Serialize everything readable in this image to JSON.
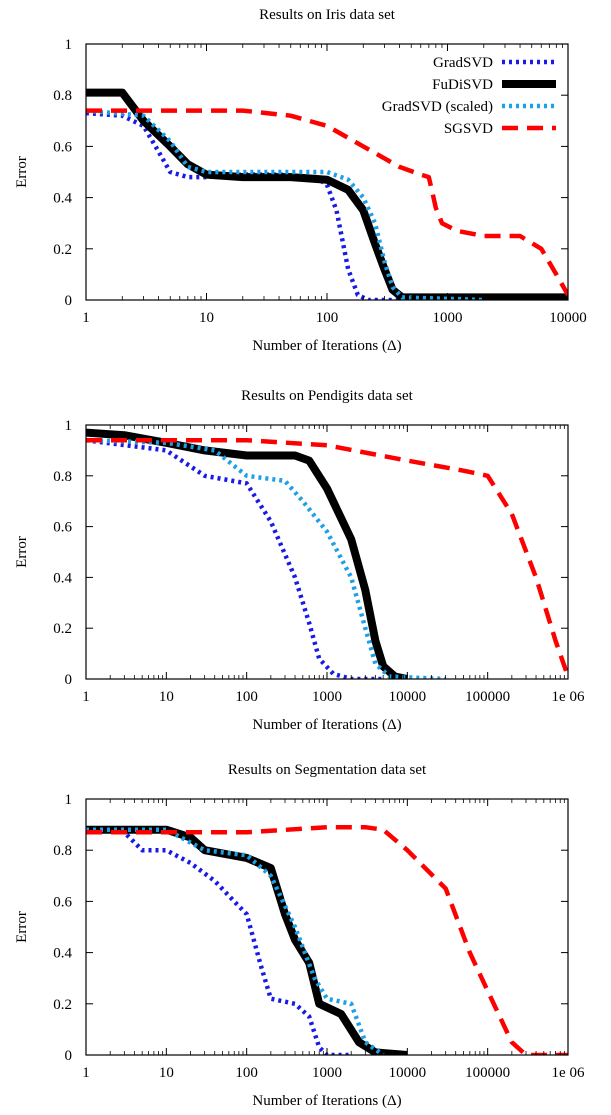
{
  "chart_data": [
    {
      "type": "line",
      "title": "Results on Iris data set",
      "xlabel": "Number of Iterations (Δ)",
      "ylabel": "Error",
      "xscale": "log",
      "xlim": [
        1,
        10000
      ],
      "ylim": [
        0,
        1
      ],
      "xticks": [
        1,
        10,
        100,
        1000,
        10000
      ],
      "xtick_labels": [
        "1",
        "10",
        "100",
        "1000",
        "10000"
      ],
      "yticks": [
        0,
        0.2,
        0.4,
        0.6,
        0.8,
        1
      ],
      "ytick_labels": [
        "0",
        "0.2",
        "0.4",
        "0.6",
        "0.8",
        "1"
      ],
      "grid": false,
      "legend_position": "top-right",
      "series": [
        {
          "name": "GradSVD",
          "color": "#1a1ae6",
          "style": "dotted",
          "points": [
            [
              1,
              0.73
            ],
            [
              2,
              0.72
            ],
            [
              3,
              0.68
            ],
            [
              4,
              0.58
            ],
            [
              5,
              0.5
            ],
            [
              7,
              0.48
            ],
            [
              10,
              0.48
            ],
            [
              20,
              0.49
            ],
            [
              40,
              0.49
            ],
            [
              80,
              0.48
            ],
            [
              100,
              0.45
            ],
            [
              120,
              0.35
            ],
            [
              150,
              0.12
            ],
            [
              180,
              0.02
            ],
            [
              220,
              0
            ],
            [
              2000,
              0
            ]
          ]
        },
        {
          "name": "FuDiSVD",
          "color": "#000000",
          "style": "solid",
          "points": [
            [
              1,
              0.81
            ],
            [
              2,
              0.81
            ],
            [
              3,
              0.7
            ],
            [
              5,
              0.6
            ],
            [
              7,
              0.53
            ],
            [
              10,
              0.49
            ],
            [
              20,
              0.48
            ],
            [
              50,
              0.48
            ],
            [
              100,
              0.47
            ],
            [
              150,
              0.43
            ],
            [
              200,
              0.35
            ],
            [
              250,
              0.22
            ],
            [
              300,
              0.12
            ],
            [
              350,
              0.04
            ],
            [
              420,
              0.01
            ],
            [
              600,
              0.01
            ],
            [
              2000,
              0.01
            ],
            [
              10000,
              0.01
            ]
          ]
        },
        {
          "name": "GradSVD (scaled)",
          "color": "#1ea0e6",
          "style": "dotted",
          "points": [
            [
              1,
              0.74
            ],
            [
              3,
              0.72
            ],
            [
              5,
              0.62
            ],
            [
              7,
              0.52
            ],
            [
              10,
              0.5
            ],
            [
              20,
              0.5
            ],
            [
              50,
              0.5
            ],
            [
              100,
              0.5
            ],
            [
              150,
              0.47
            ],
            [
              200,
              0.4
            ],
            [
              250,
              0.3
            ],
            [
              300,
              0.15
            ],
            [
              350,
              0.05
            ],
            [
              420,
              0.01
            ],
            [
              2000,
              0
            ]
          ]
        },
        {
          "name": "SGSVD",
          "color": "#ff0000",
          "style": "dashed",
          "points": [
            [
              1,
              0.74
            ],
            [
              5,
              0.74
            ],
            [
              20,
              0.74
            ],
            [
              50,
              0.72
            ],
            [
              100,
              0.68
            ],
            [
              200,
              0.6
            ],
            [
              400,
              0.52
            ],
            [
              600,
              0.49
            ],
            [
              700,
              0.48
            ],
            [
              750,
              0.42
            ],
            [
              800,
              0.36
            ],
            [
              900,
              0.3
            ],
            [
              1200,
              0.27
            ],
            [
              2000,
              0.25
            ],
            [
              4000,
              0.25
            ],
            [
              6000,
              0.2
            ],
            [
              8000,
              0.1
            ],
            [
              10000,
              0.02
            ]
          ]
        }
      ]
    },
    {
      "type": "line",
      "title": "Results on Pendigits data set",
      "xlabel": "Number of Iterations (Δ)",
      "ylabel": "Error",
      "xscale": "log",
      "xlim": [
        1,
        1000000
      ],
      "ylim": [
        0,
        1
      ],
      "xticks": [
        1,
        10,
        100,
        1000,
        10000,
        100000,
        1000000
      ],
      "xtick_labels": [
        "1",
        "10",
        "100",
        "1000",
        "10000",
        "100000",
        "1e 06"
      ],
      "yticks": [
        0,
        0.2,
        0.4,
        0.6,
        0.8,
        1
      ],
      "ytick_labels": [
        "0",
        "0.2",
        "0.4",
        "0.6",
        "0.8",
        "1"
      ],
      "grid": false,
      "series": [
        {
          "name": "GradSVD",
          "color": "#1a1ae6",
          "style": "dotted",
          "points": [
            [
              1,
              0.94
            ],
            [
              10,
              0.9
            ],
            [
              30,
              0.8
            ],
            [
              100,
              0.77
            ],
            [
              200,
              0.62
            ],
            [
              400,
              0.4
            ],
            [
              600,
              0.22
            ],
            [
              800,
              0.08
            ],
            [
              1200,
              0.02
            ],
            [
              2000,
              0
            ],
            [
              5000,
              0
            ]
          ]
        },
        {
          "name": "FuDiSVD",
          "color": "#000000",
          "style": "solid",
          "points": [
            [
              1,
              0.97
            ],
            [
              3,
              0.96
            ],
            [
              10,
              0.93
            ],
            [
              30,
              0.9
            ],
            [
              100,
              0.88
            ],
            [
              400,
              0.88
            ],
            [
              600,
              0.86
            ],
            [
              1000,
              0.75
            ],
            [
              2000,
              0.55
            ],
            [
              3000,
              0.35
            ],
            [
              4000,
              0.15
            ],
            [
              5000,
              0.05
            ],
            [
              7000,
              0.01
            ],
            [
              10000,
              0
            ]
          ]
        },
        {
          "name": "GradSVD (scaled)",
          "color": "#1ea0e6",
          "style": "dotted",
          "points": [
            [
              1,
              0.94
            ],
            [
              10,
              0.93
            ],
            [
              40,
              0.9
            ],
            [
              100,
              0.8
            ],
            [
              300,
              0.78
            ],
            [
              500,
              0.7
            ],
            [
              1000,
              0.58
            ],
            [
              2000,
              0.4
            ],
            [
              3000,
              0.2
            ],
            [
              4000,
              0.06
            ],
            [
              6000,
              0.01
            ],
            [
              30000,
              0
            ]
          ]
        },
        {
          "name": "SGSVD",
          "color": "#ff0000",
          "style": "dashed",
          "points": [
            [
              1,
              0.94
            ],
            [
              100,
              0.94
            ],
            [
              1000,
              0.92
            ],
            [
              10000,
              0.86
            ],
            [
              50000,
              0.82
            ],
            [
              100000,
              0.8
            ],
            [
              200000,
              0.65
            ],
            [
              400000,
              0.4
            ],
            [
              700000,
              0.15
            ],
            [
              1000000,
              0.01
            ]
          ]
        }
      ]
    },
    {
      "type": "line",
      "title": "Results on Segmentation data set",
      "xlabel": "Number of Iterations (Δ)",
      "ylabel": "Error",
      "xscale": "log",
      "xlim": [
        1,
        1000000
      ],
      "ylim": [
        0,
        1
      ],
      "xticks": [
        1,
        10,
        100,
        1000,
        10000,
        100000,
        1000000
      ],
      "xtick_labels": [
        "1",
        "10",
        "100",
        "1000",
        "10000",
        "100000",
        "1e 06"
      ],
      "yticks": [
        0,
        0.2,
        0.4,
        0.6,
        0.8,
        1
      ],
      "ytick_labels": [
        "0",
        "0.2",
        "0.4",
        "0.6",
        "0.8",
        "1"
      ],
      "grid": false,
      "series": [
        {
          "name": "GradSVD",
          "color": "#1a1ae6",
          "style": "dotted",
          "points": [
            [
              1,
              0.88
            ],
            [
              3,
              0.87
            ],
            [
              5,
              0.8
            ],
            [
              10,
              0.8
            ],
            [
              20,
              0.75
            ],
            [
              40,
              0.68
            ],
            [
              70,
              0.6
            ],
            [
              100,
              0.55
            ],
            [
              150,
              0.35
            ],
            [
              200,
              0.22
            ],
            [
              400,
              0.2
            ],
            [
              600,
              0.15
            ],
            [
              800,
              0.03
            ],
            [
              1000,
              0
            ],
            [
              2000,
              0
            ]
          ]
        },
        {
          "name": "FuDiSVD",
          "color": "#000000",
          "style": "solid",
          "points": [
            [
              1,
              0.88
            ],
            [
              10,
              0.88
            ],
            [
              20,
              0.85
            ],
            [
              30,
              0.8
            ],
            [
              100,
              0.77
            ],
            [
              200,
              0.73
            ],
            [
              300,
              0.55
            ],
            [
              400,
              0.45
            ],
            [
              600,
              0.36
            ],
            [
              800,
              0.2
            ],
            [
              1500,
              0.16
            ],
            [
              2500,
              0.05
            ],
            [
              4000,
              0.01
            ],
            [
              10000,
              0
            ]
          ]
        },
        {
          "name": "GradSVD (scaled)",
          "color": "#1ea0e6",
          "style": "dotted",
          "points": [
            [
              1,
              0.88
            ],
            [
              10,
              0.88
            ],
            [
              30,
              0.8
            ],
            [
              100,
              0.78
            ],
            [
              200,
              0.7
            ],
            [
              400,
              0.5
            ],
            [
              700,
              0.3
            ],
            [
              1000,
              0.22
            ],
            [
              2000,
              0.2
            ],
            [
              3000,
              0.05
            ],
            [
              5000,
              0
            ]
          ]
        },
        {
          "name": "SGSVD",
          "color": "#ff0000",
          "style": "dashed",
          "points": [
            [
              1,
              0.87
            ],
            [
              100,
              0.87
            ],
            [
              1000,
              0.89
            ],
            [
              3000,
              0.89
            ],
            [
              5000,
              0.88
            ],
            [
              10000,
              0.8
            ],
            [
              30000,
              0.65
            ],
            [
              60000,
              0.4
            ],
            [
              100000,
              0.25
            ],
            [
              200000,
              0.05
            ],
            [
              300000,
              0
            ],
            [
              1000000,
              0
            ]
          ]
        }
      ]
    }
  ]
}
